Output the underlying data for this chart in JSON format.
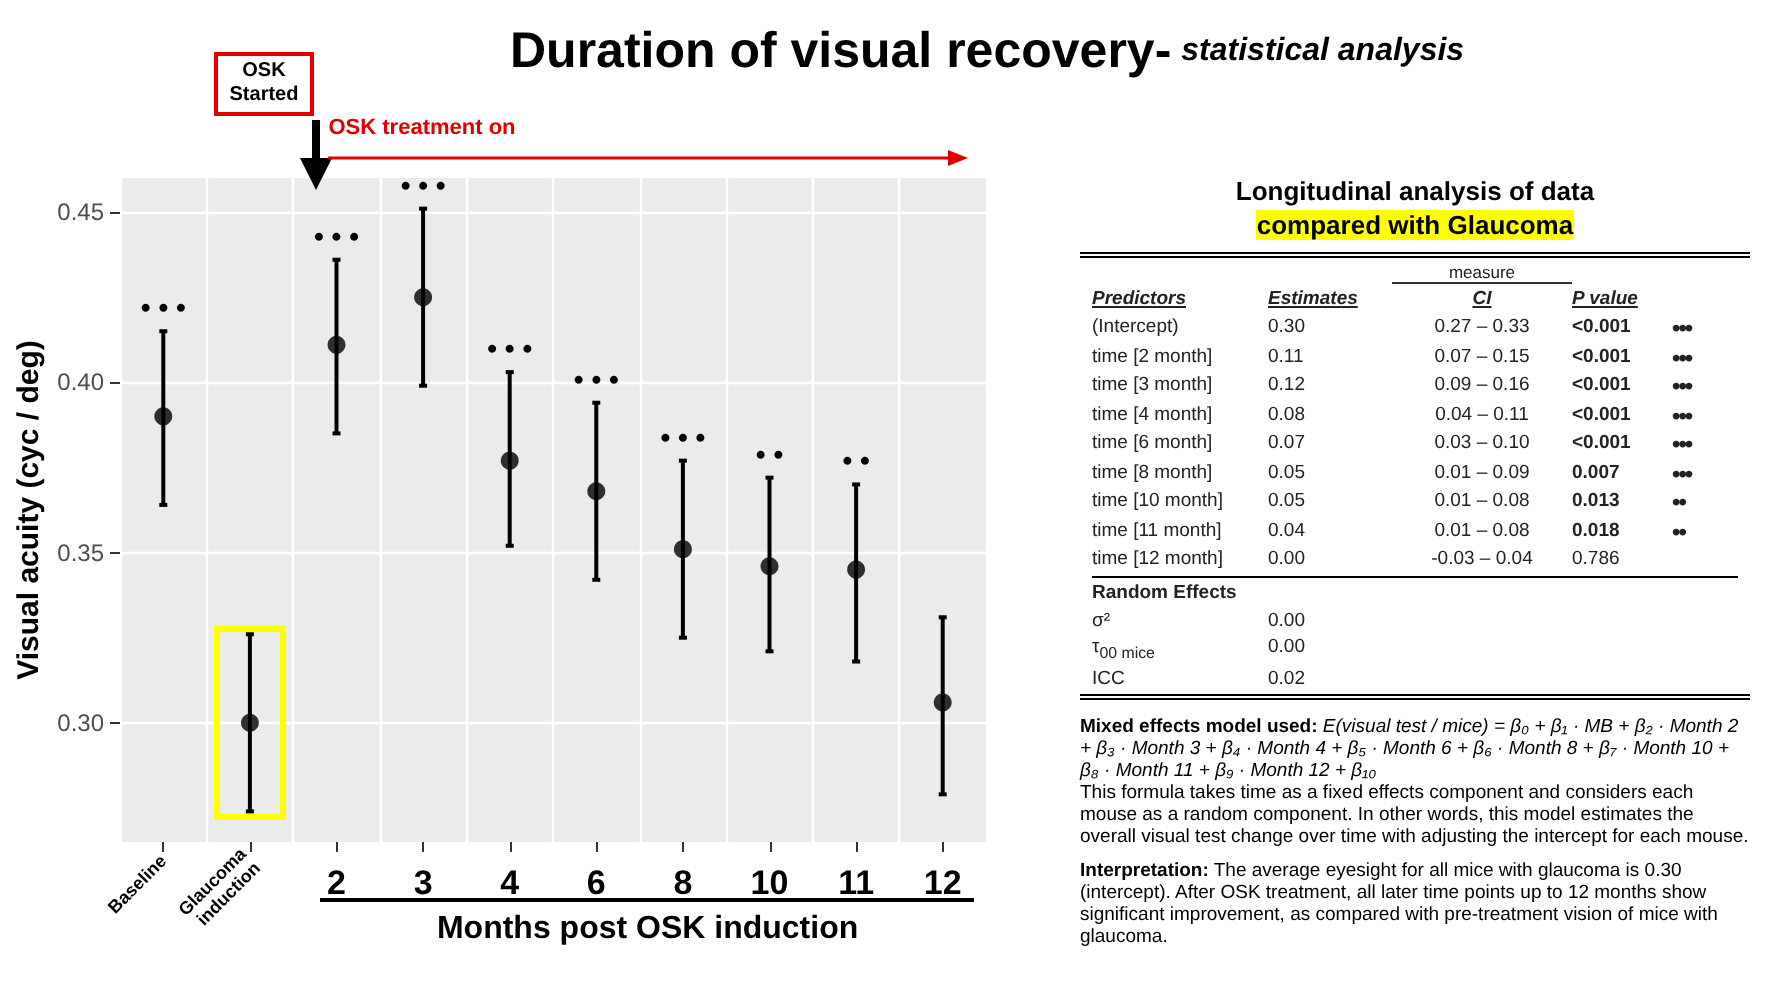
{
  "chart_data": {
    "type": "scatter",
    "title": "Duration of visual recovery-",
    "subtitle": "statistical analysis",
    "ylabel": "Visual acuity (cyc / deg)",
    "xlabel": "Months post OSK induction",
    "categories": [
      "Baseline",
      "Glaucoma induction",
      "2",
      "3",
      "4",
      "6",
      "8",
      "10",
      "11",
      "12"
    ],
    "values": [
      0.39,
      0.3,
      0.411,
      0.425,
      0.377,
      0.368,
      0.351,
      0.346,
      0.345,
      0.306
    ],
    "errors": [
      [
        0.364,
        0.415
      ],
      [
        0.274,
        0.326
      ],
      [
        0.385,
        0.436
      ],
      [
        0.399,
        0.451
      ],
      [
        0.352,
        0.403
      ],
      [
        0.342,
        0.394
      ],
      [
        0.325,
        0.377
      ],
      [
        0.321,
        0.372
      ],
      [
        0.318,
        0.37
      ],
      [
        0.279,
        0.331
      ]
    ],
    "color": "#000000",
    "marker": "circle",
    "grid": true,
    "ylim": [
      0.265,
      0.46
    ],
    "yticks": [
      {
        "value": 0.3,
        "label": "0.30"
      },
      {
        "value": 0.35,
        "label": "0.35"
      },
      {
        "value": 0.4,
        "label": "0.40"
      },
      {
        "value": 0.45,
        "label": "0.45"
      }
    ],
    "annotations": [
      {
        "text": "• • •",
        "x": "Baseline",
        "y": 0.415
      },
      {
        "text": "• • •",
        "x": "2",
        "y": 0.436
      },
      {
        "text": "• • •",
        "x": "3",
        "y": 0.451
      },
      {
        "text": "• • •",
        "x": "4",
        "y": 0.403
      },
      {
        "text": "• • •",
        "x": "6",
        "y": 0.394
      },
      {
        "text": "• • •",
        "x": "8",
        "y": 0.377
      },
      {
        "text": "• •",
        "x": "10",
        "y": 0.372
      },
      {
        "text": "• •",
        "x": "11",
        "y": 0.37
      },
      "OSK Started",
      "OSK treatment on",
      "Longitudinal analysis of data",
      "compared with Glaucoma",
      "measure",
      "Predictors\tEstimates\tCI\tP value",
      "(Intercept)\t0.30\t0.27 – 0.33\t<0.001\t•••",
      "time [2 month]\t0.11\t0.07 – 0.15\t<0.001\t•••",
      "time [3 month]\t0.12\t0.09 – 0.16\t<0.001\t•••",
      "time [4 month]\t0.08\t0.04 – 0.11\t<0.001\t•••",
      "time [6 month]\t0.07\t0.03 – 0.10\t<0.001\t•••",
      "time [8 month]\t0.05\t0.01 – 0.09\t0.007\t•••",
      "time [10 month]\t0.05\t0.01 – 0.08\t0.013\t••",
      "time [11 month]\t0.04\t0.01 – 0.08\t0.018\t••",
      "time [12 month]\t0.00\t-0.03 – 0.04\t0.786",
      "Random Effects",
      "σ²\t0.00",
      "τ$_{00 mice}$\t0.00",
      "ICC\t0.02",
      "Mixed effects model used:",
      "E(visual test / mice) = β₀ + β₁ · MB + β₂ · Month 2 + β₃ · Month 3 + β₄ · Month 4 + β₅ · Month 6 + β₆ · Month 8 + β₇ · Month 10 + β₈ · Month 11 + β₉ · Month 12 + β₁₀",
      "This formula takes time as a fixed effects component and considers each mouse as a random component. In other words, this model estimates the overall visual test change over time with adjusting the intercept for each mouse.",
      "Interpretation:",
      "The average eyesight for all mice with glaucoma is 0.30 (intercept). After OSK treatment, all later time points up to 12 months show significant improvement, as compared with pre-treatment vision of mice with glaucoma."
    ]
  }
}
